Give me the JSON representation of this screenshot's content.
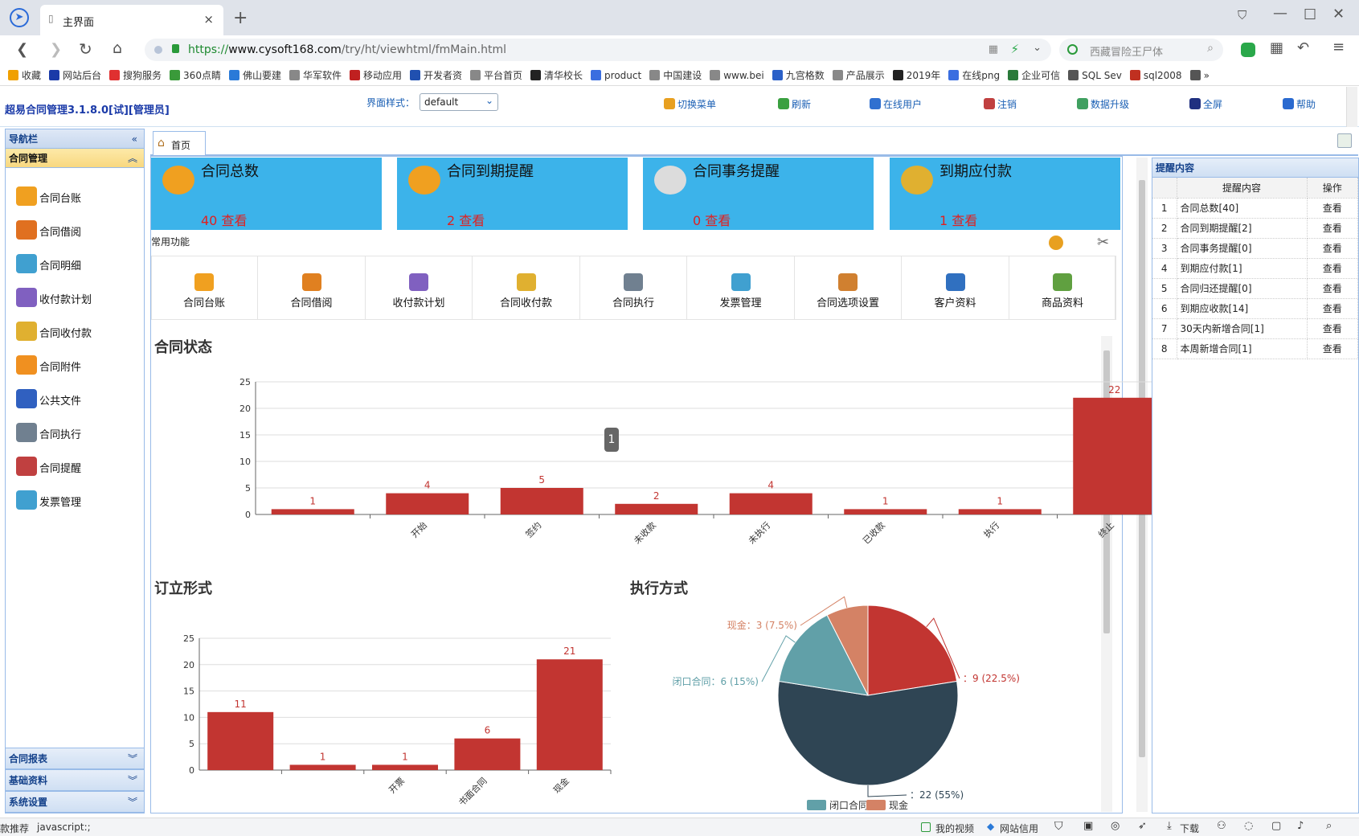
{
  "browser": {
    "tab_title": "主界面",
    "url_prefix": "https://",
    "url_host": "www.cysoft168.com",
    "url_path": "/try/ht/viewhtml/fmMain.html",
    "search_placeholder": "西藏冒险王尸体",
    "bookmarks": [
      "收藏",
      "网站后台",
      "搜狗服务",
      "360点睛",
      "佛山要建",
      "华军软件",
      "移动应用",
      "开发者资",
      "平台首页",
      "清华校长",
      "product",
      "中国建设",
      "www.bei",
      "九宫格数",
      "产品展示",
      "2019年",
      "在线png",
      "企业可信",
      "SQL Sev",
      "sql2008",
      "»"
    ],
    "bookmark_colors": [
      "#f0a000",
      "#1a3aa8",
      "#e03030",
      "#3a9a3a",
      "#2a7ad8",
      "#888",
      "#c02020",
      "#2050b0",
      "#888",
      "#222",
      "#3a6ee0",
      "#888",
      "#888",
      "#2a60c8",
      "#888",
      "#222",
      "#3a6ee0",
      "#2a7a3a",
      "#555",
      "#c03020",
      "#555"
    ]
  },
  "app": {
    "title": "超易合同管理3.1.8.0[试][管理员]",
    "style_label": "界面样式：",
    "style_value": "default",
    "toolbar": [
      "切换菜单",
      "刷新",
      "在线用户",
      "注销",
      "数据升级",
      "全屏",
      "帮助"
    ],
    "toolbar_colors": [
      "#e8a020",
      "#3aa040",
      "#3070d0",
      "#c04040",
      "#40a060",
      "#203080",
      "#2a6ad0"
    ]
  },
  "sidebar": {
    "nav_title": "导航栏",
    "active_group": "合同管理",
    "items": [
      "合同台账",
      "合同借阅",
      "合同明细",
      "收付款计划",
      "合同收付款",
      "合同附件",
      "公共文件",
      "合同执行",
      "合同提醒",
      "发票管理"
    ],
    "item_colors": [
      "#f0a020",
      "#e07020",
      "#40a0d0",
      "#8060c0",
      "#e0b030",
      "#f09020",
      "#3060c0",
      "#708090",
      "#c04040",
      "#40a0d0"
    ],
    "bottom_groups": [
      "合同报表",
      "基础资料",
      "系统设置"
    ]
  },
  "main": {
    "home_tab": "首页",
    "cards": [
      {
        "title": "合同总数",
        "value": "40 查看"
      },
      {
        "title": "合同到期提醒",
        "value": "2 查看"
      },
      {
        "title": "合同事务提醒",
        "value": "0 查看"
      },
      {
        "title": "到期应付款",
        "value": "1 查看"
      }
    ],
    "common_label": "常用功能",
    "quick": [
      "合同台账",
      "合同借阅",
      "收付款计划",
      "合同收付款",
      "合同执行",
      "发票管理",
      "合同选项设置",
      "客户资料",
      "商品资料"
    ],
    "quick_colors": [
      "#f0a020",
      "#e08020",
      "#8060c0",
      "#e0b030",
      "#708090",
      "#40a0d0",
      "#d08030",
      "#3070c0",
      "#60a040"
    ],
    "page_badge": "1",
    "sections": {
      "status": "合同状态",
      "form": "订立形式",
      "exec": "执行方式"
    }
  },
  "chart_data": [
    {
      "type": "bar",
      "title": "合同状态",
      "categories": [
        "",
        "开始",
        "签约",
        "未收款",
        "未执行",
        "已收款",
        "执行",
        "终止"
      ],
      "values": [
        1,
        4,
        5,
        2,
        4,
        1,
        1,
        22
      ],
      "ylim": [
        0,
        25
      ],
      "yticks": [
        0,
        5,
        10,
        15,
        20,
        25
      ],
      "color": "#c23531"
    },
    {
      "type": "bar",
      "title": "订立形式",
      "categories": [
        "",
        "",
        "开票",
        "书面合同",
        "现金"
      ],
      "values": [
        11,
        1,
        1,
        6,
        21
      ],
      "ylim": [
        0,
        25
      ],
      "yticks": [
        0,
        5,
        10,
        15,
        20,
        25
      ],
      "color": "#c23531"
    },
    {
      "type": "pie",
      "title": "执行方式",
      "slices": [
        {
          "name": "",
          "value": 9,
          "label": "：9 (22.5%)",
          "color": "#c23531"
        },
        {
          "name": "",
          "value": 22,
          "label": "：22 (55%)",
          "color": "#2f4554"
        },
        {
          "name": "闭口合同",
          "value": 6,
          "label": "闭口合同：6 (15%)",
          "color": "#61a0a8"
        },
        {
          "name": "现金",
          "value": 3,
          "label": "现金：3 (7.5%)",
          "color": "#d48265"
        }
      ],
      "legend": [
        "闭口合同",
        "现金"
      ],
      "legend_position": "bottom"
    }
  ],
  "reminders": {
    "panel_title": "提醒内容",
    "col_content": "提醒内容",
    "col_action": "操作",
    "rows": [
      {
        "n": "1",
        "text": "合同总数[40]",
        "action": "查看"
      },
      {
        "n": "2",
        "text": "合同到期提醒[2]",
        "action": "查看"
      },
      {
        "n": "3",
        "text": "合同事务提醒[0]",
        "action": "查看"
      },
      {
        "n": "4",
        "text": "到期应付款[1]",
        "action": "查看"
      },
      {
        "n": "5",
        "text": "合同归还提醒[0]",
        "action": "查看"
      },
      {
        "n": "6",
        "text": "到期应收款[14]",
        "action": "查看"
      },
      {
        "n": "7",
        "text": "30天内新增合同[1]",
        "action": "查看"
      },
      {
        "n": "8",
        "text": "本周新增合同[1]",
        "action": "查看"
      }
    ]
  },
  "status": {
    "left_text": "款推荐",
    "link_text": "javascript:;",
    "items": [
      "我的视频",
      "网站信用",
      "下载"
    ]
  }
}
